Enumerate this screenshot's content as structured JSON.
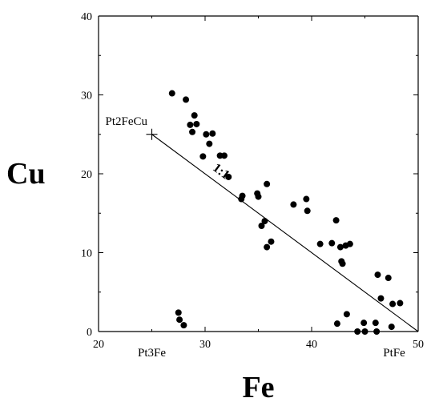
{
  "chart_data": {
    "type": "scatter",
    "title": "",
    "xlabel": "Fe",
    "ylabel": "Cu",
    "xlim": [
      20,
      50
    ],
    "ylim": [
      0,
      40
    ],
    "xticks": [
      20,
      30,
      40,
      50
    ],
    "yticks": [
      0,
      10,
      20,
      30,
      40
    ],
    "grid": false,
    "series": [
      {
        "type": "scatter",
        "points": [
          [
            26.9,
            30.2
          ],
          [
            28.2,
            29.4
          ],
          [
            29.0,
            27.4
          ],
          [
            28.6,
            26.2
          ],
          [
            29.2,
            26.3
          ],
          [
            28.8,
            25.3
          ],
          [
            30.1,
            25.0
          ],
          [
            30.7,
            25.1
          ],
          [
            30.4,
            23.8
          ],
          [
            29.8,
            22.2
          ],
          [
            31.4,
            22.3
          ],
          [
            31.8,
            22.3
          ],
          [
            32.2,
            19.6
          ],
          [
            33.5,
            17.2
          ],
          [
            33.4,
            16.8
          ],
          [
            34.9,
            17.5
          ],
          [
            35.0,
            17.1
          ],
          [
            35.8,
            18.7
          ],
          [
            35.3,
            13.4
          ],
          [
            35.6,
            14.0
          ],
          [
            35.8,
            10.7
          ],
          [
            36.2,
            11.4
          ],
          [
            38.3,
            16.1
          ],
          [
            39.5,
            16.8
          ],
          [
            39.6,
            15.3
          ],
          [
            40.8,
            11.1
          ],
          [
            41.9,
            11.2
          ],
          [
            42.3,
            14.1
          ],
          [
            42.7,
            10.7
          ],
          [
            43.2,
            10.9
          ],
          [
            43.6,
            11.1
          ],
          [
            42.8,
            8.9
          ],
          [
            42.9,
            8.6
          ],
          [
            42.4,
            1.0
          ],
          [
            43.3,
            2.2
          ],
          [
            44.3,
            0.0
          ],
          [
            45.0,
            0.0
          ],
          [
            44.9,
            1.1
          ],
          [
            46.0,
            1.1
          ],
          [
            46.1,
            0.0
          ],
          [
            46.2,
            7.2
          ],
          [
            46.5,
            4.2
          ],
          [
            47.2,
            6.8
          ],
          [
            47.6,
            3.5
          ],
          [
            47.5,
            0.6
          ],
          [
            48.3,
            3.6
          ],
          [
            27.5,
            2.4
          ],
          [
            27.6,
            1.5
          ],
          [
            28.0,
            0.8
          ]
        ]
      }
    ],
    "line": {
      "from": [
        25,
        25
      ],
      "to": [
        50,
        0
      ],
      "label": "1:1"
    },
    "annotations": [
      {
        "text": "Pt2FeCu",
        "x": 25,
        "y": 25,
        "marker": "plus"
      },
      {
        "text": "Pt3Fe",
        "x": 25,
        "y": 0
      },
      {
        "text": "PtFe",
        "x": 50,
        "y": 0
      }
    ]
  }
}
